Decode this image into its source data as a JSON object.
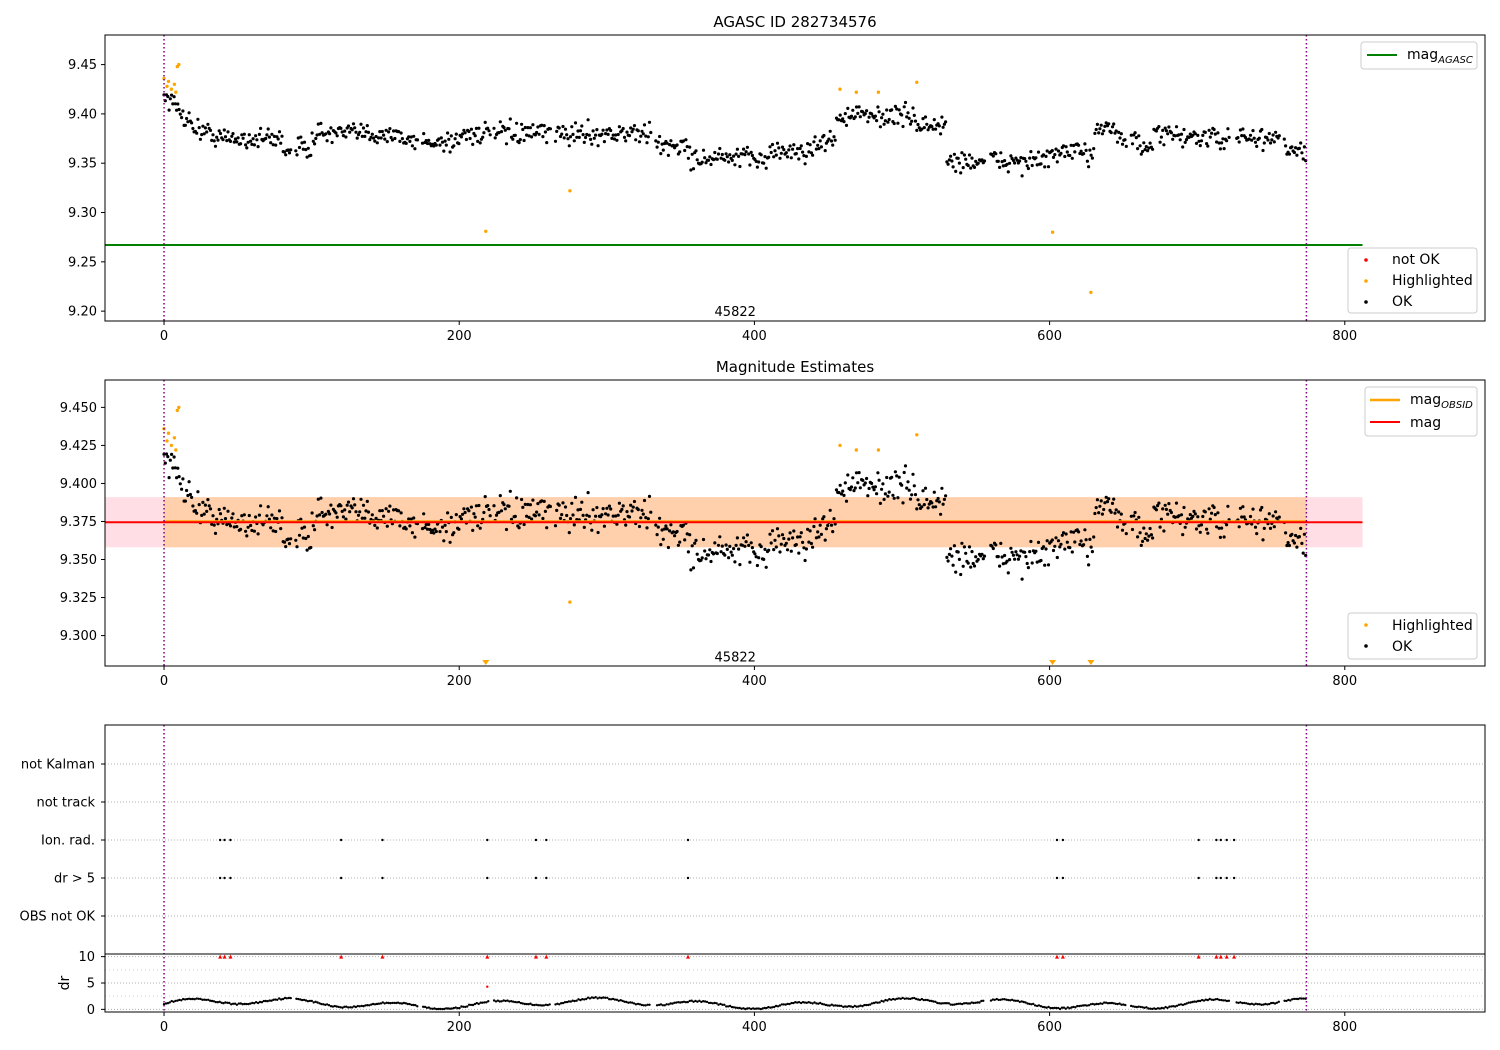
{
  "figure": {
    "background": "#ffffff"
  },
  "chart_data": [
    {
      "id": "agasc",
      "type": "scatter",
      "title": "AGASC ID 282734576",
      "xlim": [
        -40,
        895
      ],
      "ylim": [
        9.19,
        9.48
      ],
      "xticks": [
        0,
        200,
        400,
        600,
        800
      ],
      "yticks": [
        9.2,
        9.25,
        9.3,
        9.35,
        9.4,
        9.45
      ],
      "ytick_labels": [
        "9.20",
        "9.25",
        "9.30",
        "9.35",
        "9.40",
        "9.45"
      ],
      "obsid_label": {
        "text": "45822",
        "x": 387,
        "y": 9.195
      },
      "obs_boundaries": [
        0,
        774
      ],
      "lines": [
        {
          "name": "mag_AGASC",
          "y": 9.267,
          "x_range": [
            -40,
            812
          ],
          "color": "#008000"
        }
      ],
      "legend_top": [
        {
          "label": "mag",
          "subscript": "AGASC",
          "marker": "line",
          "color": "#008000"
        }
      ],
      "legend_bottom": [
        {
          "label": "not OK",
          "marker": "dot",
          "color": "#ff0000"
        },
        {
          "label": "Highlighted",
          "marker": "dot",
          "color": "#ffa500"
        },
        {
          "label": "OK",
          "marker": "dot",
          "color": "#000000"
        }
      ],
      "highlighted": [
        [
          0,
          9.436
        ],
        [
          2,
          9.428
        ],
        [
          3,
          9.433
        ],
        [
          5,
          9.425
        ],
        [
          7,
          9.43
        ],
        [
          8,
          9.422
        ],
        [
          9,
          9.448
        ],
        [
          10,
          9.45
        ],
        [
          218,
          9.281
        ],
        [
          275,
          9.322
        ],
        [
          458,
          9.425
        ],
        [
          469,
          9.422
        ],
        [
          484,
          9.422
        ],
        [
          510,
          9.432
        ],
        [
          602,
          9.28
        ],
        [
          628,
          9.219
        ]
      ],
      "not_ok": []
    },
    {
      "id": "estimates",
      "type": "scatter",
      "title": "Magnitude Estimates",
      "xlim": [
        -40,
        895
      ],
      "ylim": [
        9.28,
        9.468
      ],
      "xticks": [
        0,
        200,
        400,
        600,
        800
      ],
      "yticks": [
        9.3,
        9.325,
        9.35,
        9.375,
        9.4,
        9.425,
        9.45
      ],
      "ytick_labels": [
        "9.300",
        "9.325",
        "9.350",
        "9.375",
        "9.400",
        "9.425",
        "9.450"
      ],
      "obsid_label": {
        "text": "45822",
        "x": 387,
        "y": 9.283
      },
      "obs_boundaries": [
        0,
        774
      ],
      "bands": [
        {
          "x_range": [
            -40,
            812
          ],
          "y_range": [
            9.358,
            9.391
          ],
          "color": "#ffc0cb",
          "opacity": 0.5
        },
        {
          "x_range": [
            0,
            774
          ],
          "y_range": [
            9.358,
            9.391
          ],
          "color": "#ffa500",
          "opacity": 0.25
        }
      ],
      "lines": [
        {
          "name": "mag_OBSID",
          "y": 9.375,
          "x_range": [
            0,
            774
          ],
          "color": "#ffa500"
        },
        {
          "name": "mag",
          "y": 9.3745,
          "x_range": [
            -40,
            812
          ],
          "color": "#ff0000"
        }
      ],
      "legend_top": [
        {
          "label": "mag",
          "subscript": "OBSID",
          "marker": "line",
          "color": "#ffa500"
        },
        {
          "label": "mag",
          "subscript": "",
          "marker": "line",
          "color": "#ff0000"
        }
      ],
      "legend_bottom": [
        {
          "label": "Highlighted",
          "marker": "dot",
          "color": "#ffa500"
        },
        {
          "label": "OK",
          "marker": "dot",
          "color": "#000000"
        }
      ],
      "highlighted": [
        [
          0,
          9.436
        ],
        [
          2,
          9.428
        ],
        [
          3,
          9.433
        ],
        [
          5,
          9.425
        ],
        [
          7,
          9.43
        ],
        [
          8,
          9.422
        ],
        [
          9,
          9.448
        ],
        [
          10,
          9.45
        ],
        [
          275,
          9.322
        ],
        [
          458,
          9.425
        ],
        [
          469,
          9.422
        ],
        [
          484,
          9.422
        ],
        [
          510,
          9.432
        ]
      ],
      "offscale_low": [
        218,
        602,
        628
      ]
    },
    {
      "id": "flags",
      "type": "scatter",
      "xlim": [
        -40,
        895
      ],
      "obs_boundaries": [
        0,
        774
      ],
      "categories": [
        "not Kalman",
        "not track",
        "Ion. rad.",
        "dr > 5",
        "OBS not OK"
      ],
      "flags": {
        "Ion. rad.": [
          38,
          41,
          45,
          120,
          148,
          219,
          252,
          259,
          355,
          605,
          609,
          701,
          713,
          716,
          720,
          725
        ],
        "dr > 5": [
          38,
          41,
          45,
          120,
          148,
          219,
          252,
          259,
          355,
          605,
          609,
          701,
          713,
          716,
          720,
          725
        ]
      },
      "dr_panel": {
        "ylabel": "dr",
        "ylim": [
          -0.5,
          10.5
        ],
        "yticks": [
          0,
          5,
          10
        ],
        "ytick_labels": [
          "0",
          "5",
          "10"
        ],
        "minor_yticks": [
          2.5,
          7.5
        ],
        "clipped_at_10": [
          38,
          41,
          45,
          120,
          148,
          219,
          252,
          259,
          355,
          605,
          609,
          701,
          713,
          716,
          720,
          725
        ],
        "outlier": [
          219,
          4.3
        ]
      }
    }
  ]
}
